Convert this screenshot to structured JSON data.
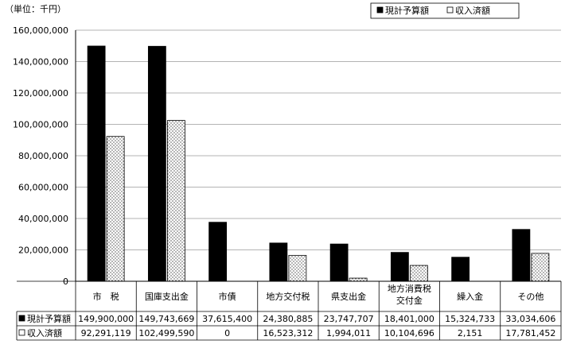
{
  "unit_label": "（単位：千円）",
  "chart_data": {
    "type": "bar",
    "categories": [
      "市　税",
      "国庫支出金",
      "市債",
      "地方交付税",
      "県支出金",
      "地方消費税\n交付金",
      "繰入金",
      "その他"
    ],
    "series": [
      {
        "name": "現計予算額",
        "values": [
          149900000,
          149743669,
          37615400,
          24380885,
          23747707,
          18401000,
          15324733,
          33034606
        ],
        "value_labels": [
          "149,900,000",
          "149,743,669",
          "37,615,400",
          "24,380,885",
          "23,747,707",
          "18,401,000",
          "15,324,733",
          "33,034,606"
        ],
        "color": "#000000",
        "pattern": "solid"
      },
      {
        "name": "収入済額",
        "values": [
          92291119,
          102499590,
          0,
          16523312,
          1994011,
          10104696,
          2151,
          17781452
        ],
        "value_labels": [
          "92,291,119",
          "102,499,590",
          "0",
          "16,523,312",
          "1,994,011",
          "10,104,696",
          "2,151",
          "17,781,452"
        ],
        "color": "#ffffff",
        "pattern": "dotted"
      }
    ],
    "ylim": [
      0,
      160000000
    ],
    "y_ticks": [
      0,
      20000000,
      40000000,
      60000000,
      80000000,
      100000000,
      120000000,
      140000000,
      160000000
    ],
    "y_tick_labels": [
      "0",
      "20,000,000",
      "40,000,000",
      "60,000,000",
      "80,000,000",
      "100,000,000",
      "120,000,000",
      "140,000,000",
      "160,000,000"
    ],
    "grid": true,
    "legend_position": "top-right",
    "data_table": true
  }
}
